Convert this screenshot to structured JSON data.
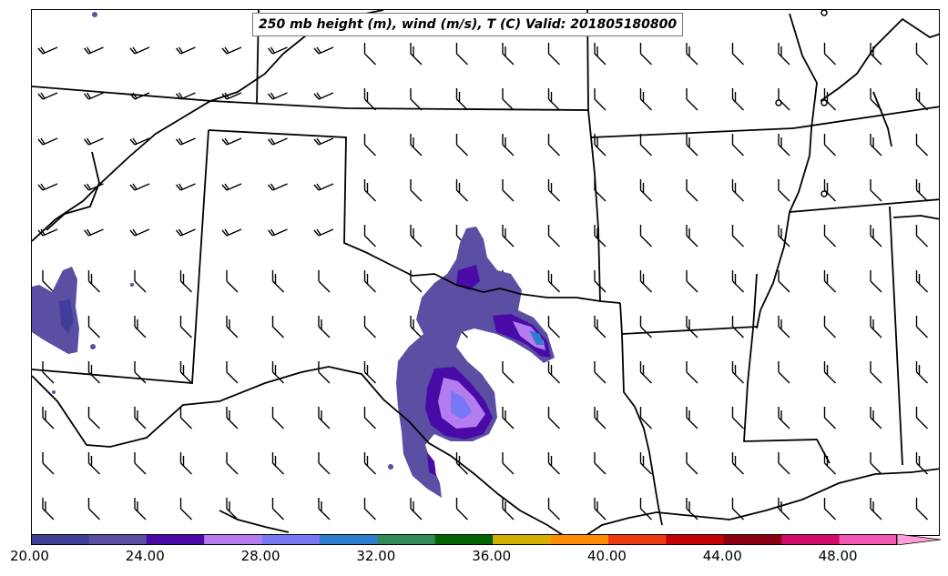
{
  "map": {
    "title": "250 mb height (m), wind (m/s), T (C) Valid: 201805180800"
  },
  "colorbar": {
    "colors": [
      "#3f3f99",
      "#5a4fa3",
      "#4a0aa8",
      "#b57cef",
      "#7878f5",
      "#2f7fd0",
      "#2e8b57",
      "#006400",
      "#d4b000",
      "#ff8c00",
      "#ee3a10",
      "#c40000",
      "#8b0010",
      "#d20a6a",
      "#f45ab4"
    ],
    "extend_color": "#ff9ed8",
    "labels": [
      "20.00",
      "24.00",
      "28.00",
      "32.00",
      "36.00",
      "40.00",
      "44.00",
      "48.00"
    ]
  },
  "wind_barbs": {
    "color": "#000000",
    "north_region_style": "check",
    "south_region_style": "flag"
  }
}
